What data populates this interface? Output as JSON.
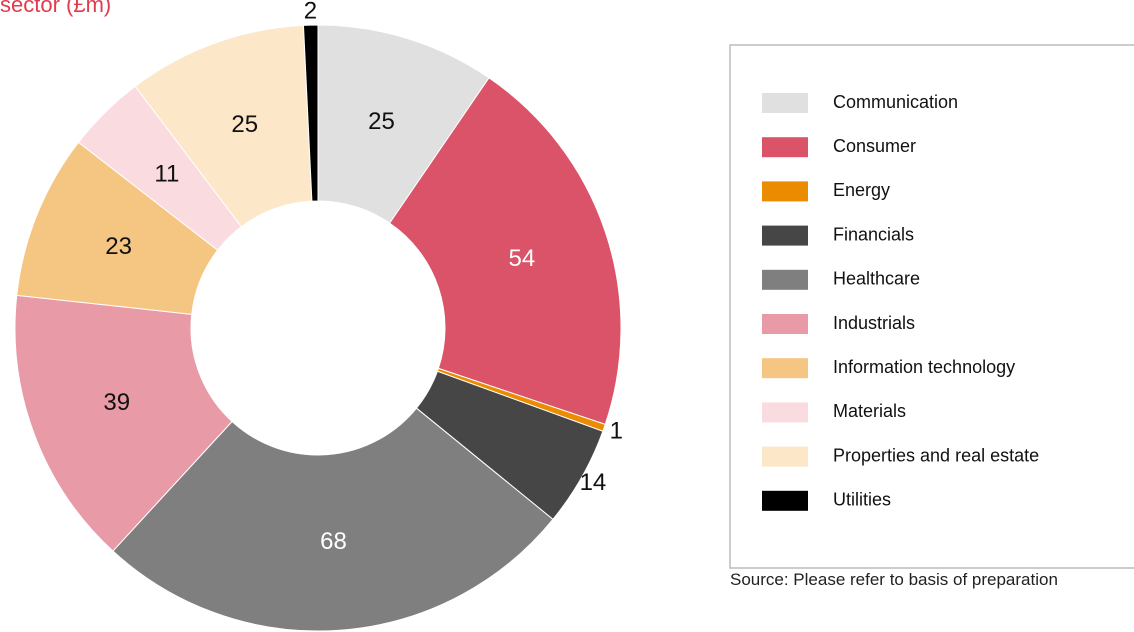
{
  "chart_data": {
    "type": "donut",
    "title": "sector (£m)",
    "categories": [
      "Communication",
      "Consumer",
      "Energy",
      "Financials",
      "Healthcare",
      "Industrials",
      "Information technology",
      "Materials",
      "Properties and real estate",
      "Utilities"
    ],
    "values": [
      25,
      54,
      1,
      14,
      68,
      39,
      23,
      11,
      25,
      2
    ],
    "colors": [
      "#e0e0e0",
      "#db5369",
      "#eb8c00",
      "#464646",
      "#7f7f7f",
      "#e89aa6",
      "#f5c582",
      "#fadbe0",
      "#fce7c8",
      "#000000"
    ],
    "legend": "right",
    "source": "Source: Please refer to basis of preparation"
  }
}
